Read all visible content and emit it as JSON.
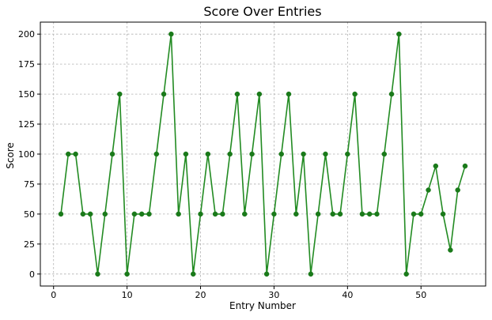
{
  "chart_data": {
    "type": "line",
    "title": "Score Over Entries",
    "xlabel": "Entry Number",
    "ylabel": "Score",
    "xlim": [
      -1.8,
      58.8
    ],
    "ylim": [
      -10,
      210
    ],
    "xticks": [
      0,
      10,
      20,
      30,
      40,
      50
    ],
    "yticks": [
      0,
      25,
      50,
      75,
      100,
      125,
      150,
      175,
      200
    ],
    "grid": true,
    "marker": "circle",
    "color": "#228B22",
    "series": [
      {
        "x": [
          1,
          2,
          3,
          4,
          5,
          6,
          7,
          8,
          9,
          10,
          11,
          12,
          13,
          14,
          15,
          16,
          17,
          18,
          19,
          20,
          21,
          22,
          23,
          24,
          25,
          26,
          27,
          28,
          29,
          30,
          31,
          32,
          33,
          34,
          35,
          36,
          37,
          38,
          39,
          40,
          41,
          42,
          43,
          44,
          45,
          46,
          47,
          48,
          49,
          50,
          51,
          52,
          53,
          54,
          55,
          56
        ],
        "values": [
          50,
          100,
          100,
          50,
          50,
          0,
          50,
          100,
          150,
          0,
          50,
          50,
          50,
          100,
          150,
          200,
          50,
          100,
          0,
          50,
          100,
          50,
          50,
          100,
          150,
          50,
          100,
          150,
          0,
          50,
          100,
          150,
          50,
          100,
          0,
          50,
          100,
          50,
          50,
          100,
          150,
          50,
          50,
          50,
          100,
          150,
          200,
          0,
          50,
          50,
          70,
          90,
          50,
          20,
          70,
          90
        ]
      }
    ]
  }
}
